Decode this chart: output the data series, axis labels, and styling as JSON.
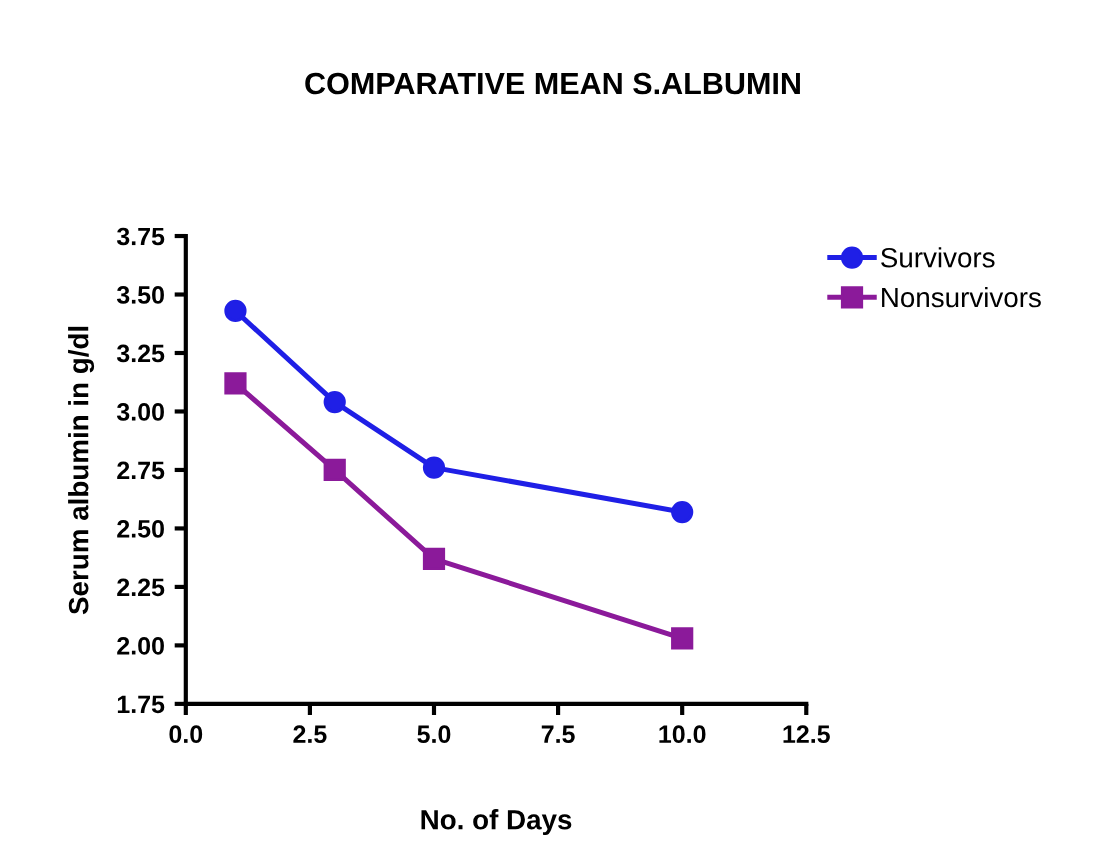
{
  "chart_data": {
    "type": "line",
    "title": "COMPARATIVE MEAN S.ALBUMIN",
    "xlabel": "No. of Days",
    "ylabel": "Serum albumin in g/dl",
    "x": [
      1,
      3,
      5,
      10
    ],
    "series": [
      {
        "name": "Survivors",
        "color": "#1f1fe6",
        "marker": "circle",
        "values": [
          3.43,
          3.04,
          2.76,
          2.57
        ]
      },
      {
        "name": "Nonsurvivors",
        "color": "#8b1a9a",
        "marker": "square",
        "values": [
          3.12,
          2.75,
          2.37,
          2.03
        ]
      }
    ],
    "xlim": [
      0,
      12.5
    ],
    "xticks": [
      {
        "value": 0,
        "label": "0.0"
      },
      2.5,
      {
        "value": 5,
        "label": "5.0"
      },
      7.5,
      {
        "value": 10,
        "label": "10.0"
      },
      12.5
    ],
    "ylim": [
      1.75,
      3.75
    ],
    "yticks": [
      1.75,
      {
        "value": 2,
        "label": "2.00"
      },
      2.25,
      {
        "value": 2.5,
        "label": "2.50"
      },
      2.75,
      {
        "value": 3,
        "label": "3.00"
      },
      3.25,
      {
        "value": 3.5,
        "label": "3.50"
      },
      3.75
    ],
    "grid": false,
    "legend": "top right",
    "line_style": "solid"
  }
}
